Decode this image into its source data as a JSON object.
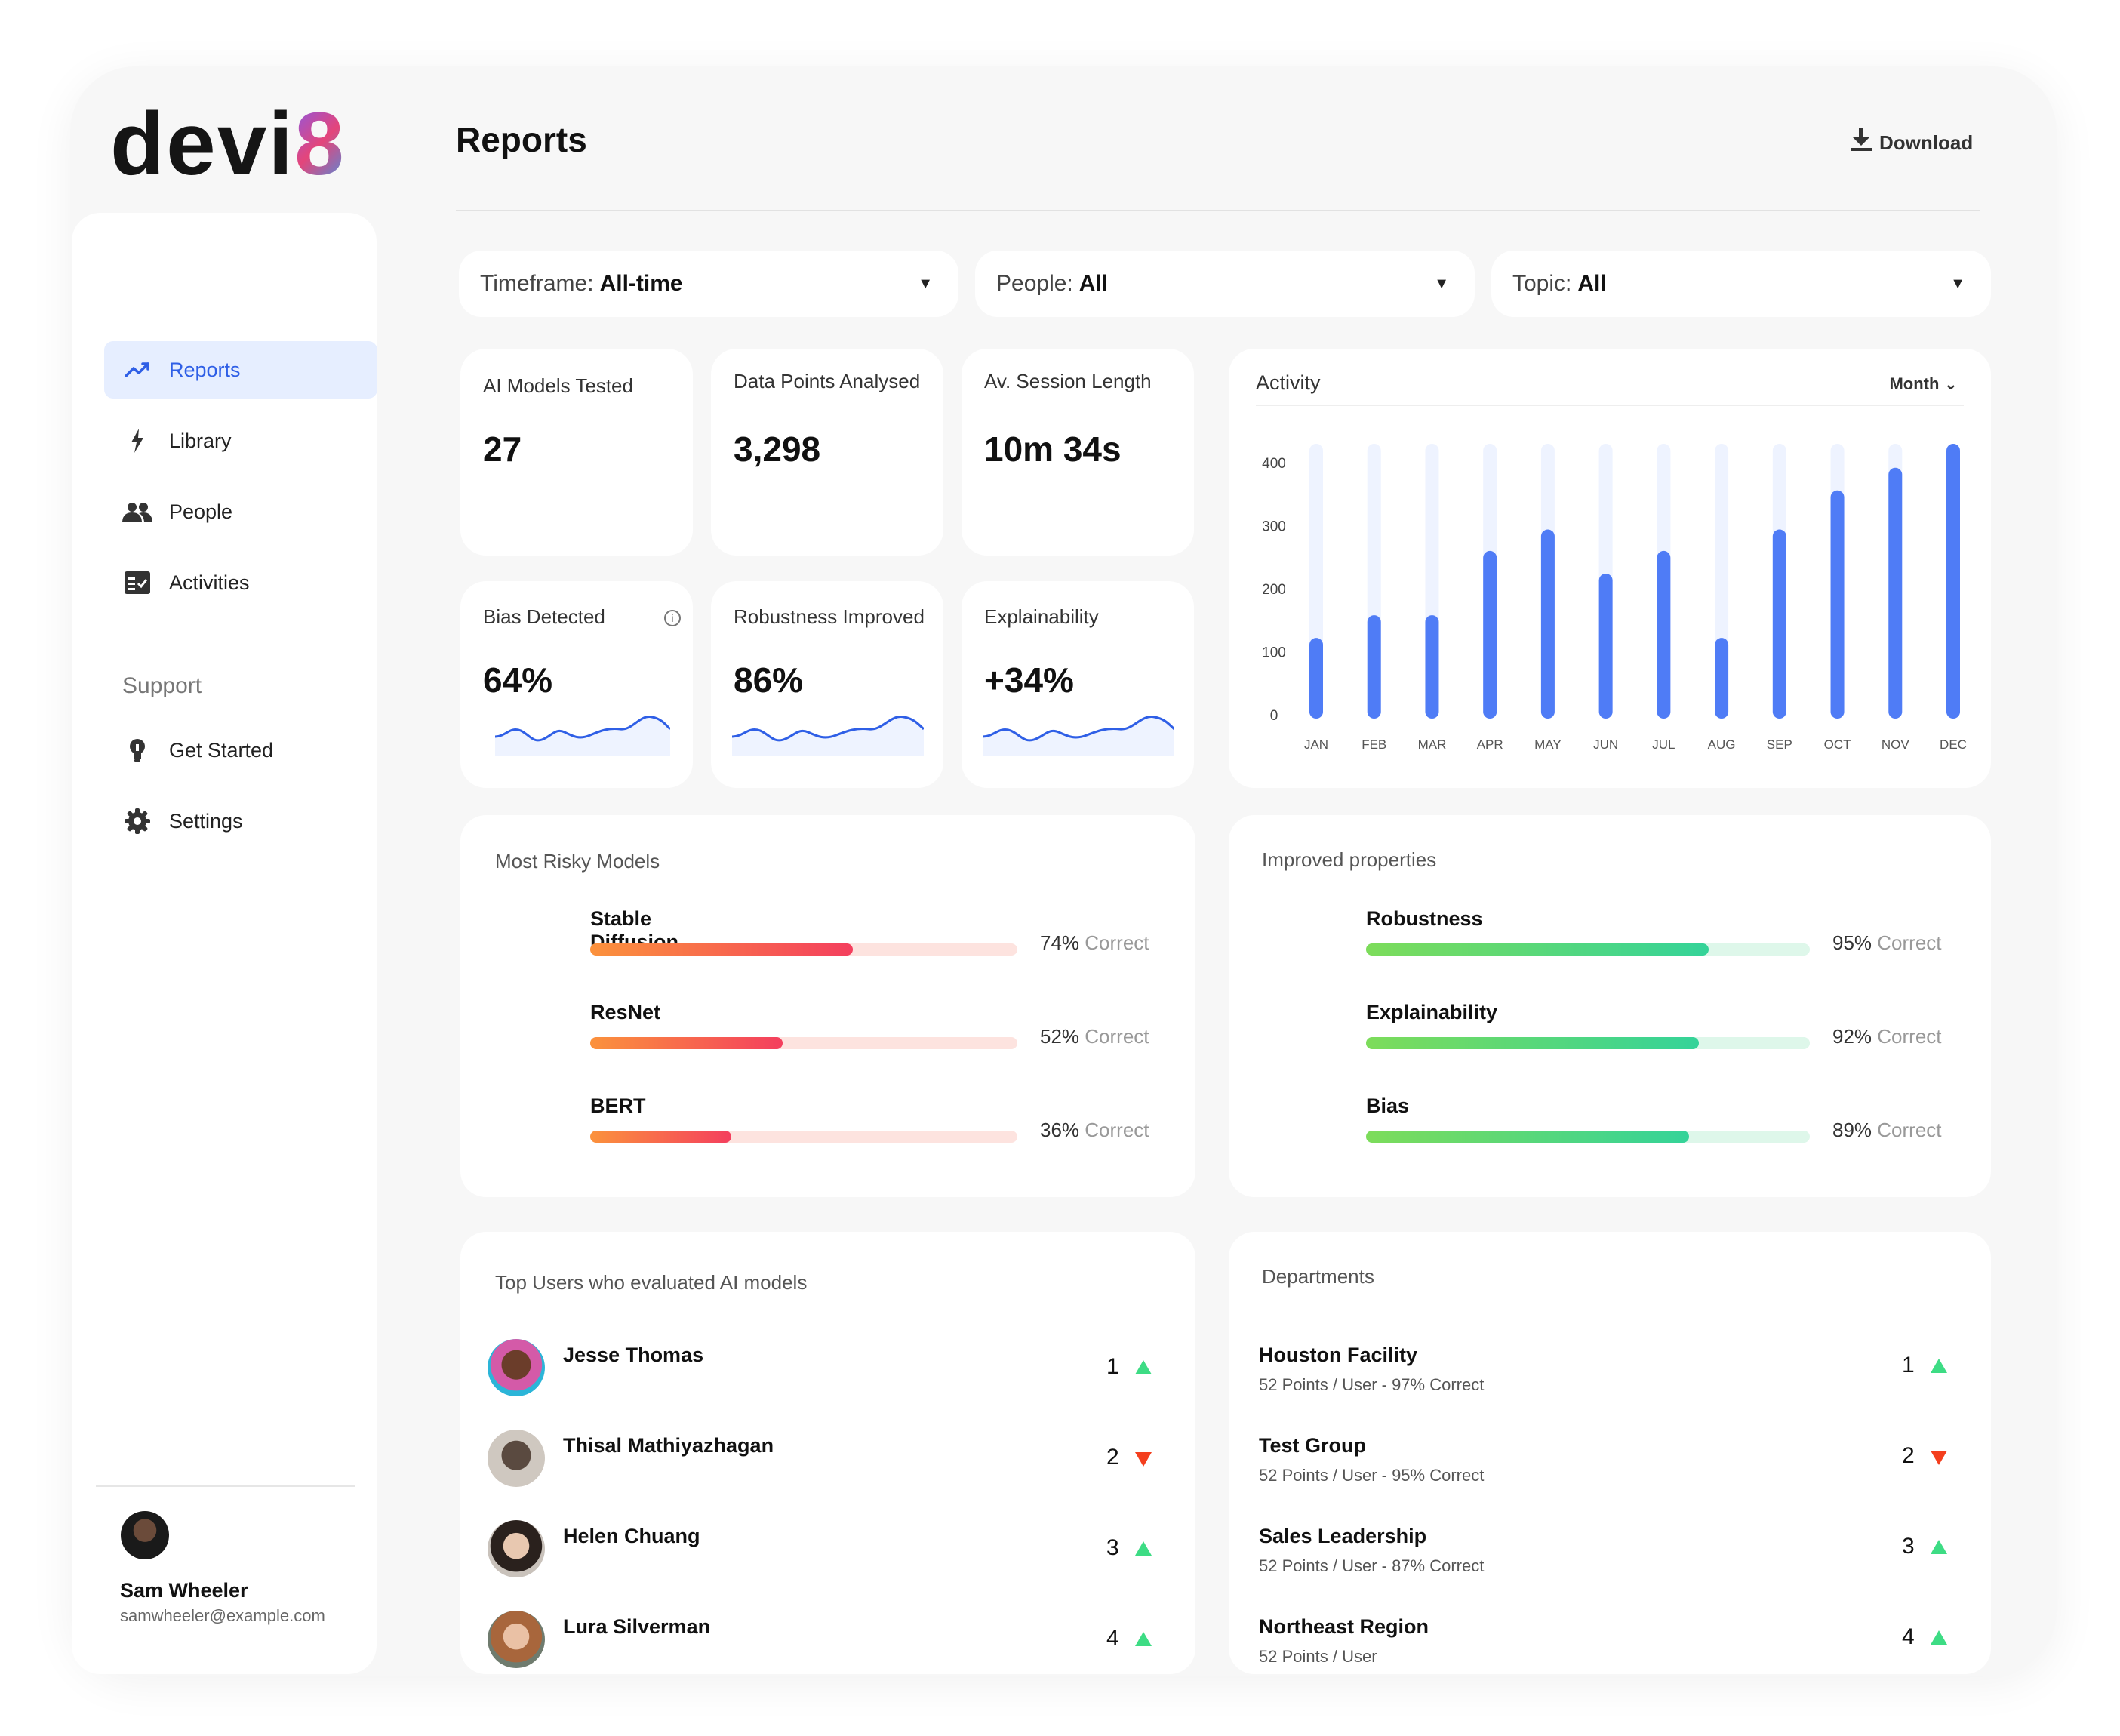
{
  "brand": {
    "logo_main": "devi",
    "logo_accent": "8"
  },
  "header": {
    "title": "Reports",
    "download_label": "Download"
  },
  "sidebar": {
    "items": [
      {
        "id": "reports",
        "label": "Reports",
        "icon": "trend-up-icon",
        "active": true
      },
      {
        "id": "library",
        "label": "Library",
        "icon": "lightning-icon"
      },
      {
        "id": "people",
        "label": "People",
        "icon": "people-icon"
      },
      {
        "id": "activities",
        "label": "Activities",
        "icon": "checklist-icon"
      }
    ],
    "support_title": "Support",
    "support_items": [
      {
        "id": "get-started",
        "label": "Get Started",
        "icon": "lightbulb-icon"
      },
      {
        "id": "settings",
        "label": "Settings",
        "icon": "gear-icon"
      }
    ],
    "user": {
      "name": "Sam Wheeler",
      "email": "samwheeler@example.com"
    }
  },
  "filters": [
    {
      "label": "Timeframe:",
      "value": "All-time"
    },
    {
      "label": "People:",
      "value": "All"
    },
    {
      "label": "Topic:",
      "value": "All"
    }
  ],
  "stats": [
    {
      "label": "AI Models Tested",
      "value": "27"
    },
    {
      "label": "Data Points Analysed",
      "value": "3,298"
    },
    {
      "label": "Av. Session Length",
      "value": "10m 34s"
    },
    {
      "label": "Bias Detected",
      "value": "64%",
      "info": true
    },
    {
      "label": "Robustness Improved",
      "value": "86%"
    },
    {
      "label": "Explainability",
      "value": "+34%"
    }
  ],
  "activity": {
    "title": "Activity",
    "period": "Month",
    "colors": {
      "bar": "#4f7cf6",
      "track": "#eef3ff"
    }
  },
  "chart_data": {
    "type": "bar",
    "categories": [
      "JAN",
      "FEB",
      "MAR",
      "APR",
      "MAY",
      "JUN",
      "JUL",
      "AUG",
      "SEP",
      "OCT",
      "NOV",
      "DEC"
    ],
    "values": [
      128,
      164,
      164,
      266,
      300,
      230,
      266,
      128,
      300,
      362,
      398,
      436
    ],
    "ylim": [
      0,
      436
    ],
    "yticks": [
      0,
      100,
      200,
      300,
      400
    ],
    "grid": false,
    "legend": "none"
  },
  "risky_models": {
    "title": "Most Risky Models",
    "items": [
      {
        "name": "Stable Diffusion",
        "pct": 74,
        "pct_label": "74%",
        "suffix": "Correct"
      },
      {
        "name": "ResNet",
        "pct": 52,
        "pct_label": "52%",
        "suffix": "Correct"
      },
      {
        "name": "BERT",
        "pct": 36,
        "pct_label": "36%",
        "suffix": "Correct"
      }
    ]
  },
  "improved_properties": {
    "title": "Improved properties",
    "items": [
      {
        "name": "Robustness",
        "pct": 95,
        "pct_label": "95%",
        "suffix": "Correct"
      },
      {
        "name": "Explainability",
        "pct": 92,
        "pct_label": "92%",
        "suffix": "Correct"
      },
      {
        "name": "Bias",
        "pct": 89,
        "pct_label": "89%",
        "suffix": "Correct"
      }
    ]
  },
  "top_users": {
    "title": "Top Users who evaluated AI models",
    "items": [
      {
        "name": "Jesse Thomas",
        "rank": "1",
        "trend": "up"
      },
      {
        "name": "Thisal Mathiyazhagan",
        "rank": "2",
        "trend": "down"
      },
      {
        "name": "Helen Chuang",
        "rank": "3",
        "trend": "up"
      },
      {
        "name": "Lura Silverman",
        "rank": "4",
        "trend": "up"
      }
    ]
  },
  "departments": {
    "title": "Departments",
    "items": [
      {
        "name": "Houston Facility",
        "sub": "52 Points / User - 97% Correct",
        "rank": "1",
        "trend": "up"
      },
      {
        "name": "Test Group",
        "sub": "52 Points / User - 95% Correct",
        "rank": "2",
        "trend": "down"
      },
      {
        "name": "Sales Leadership",
        "sub": "52 Points / User -  87% Correct",
        "rank": "3",
        "trend": "up"
      },
      {
        "name": "Northeast Region",
        "sub": "52 Points / User",
        "rank": "4",
        "trend": "up"
      }
    ]
  }
}
